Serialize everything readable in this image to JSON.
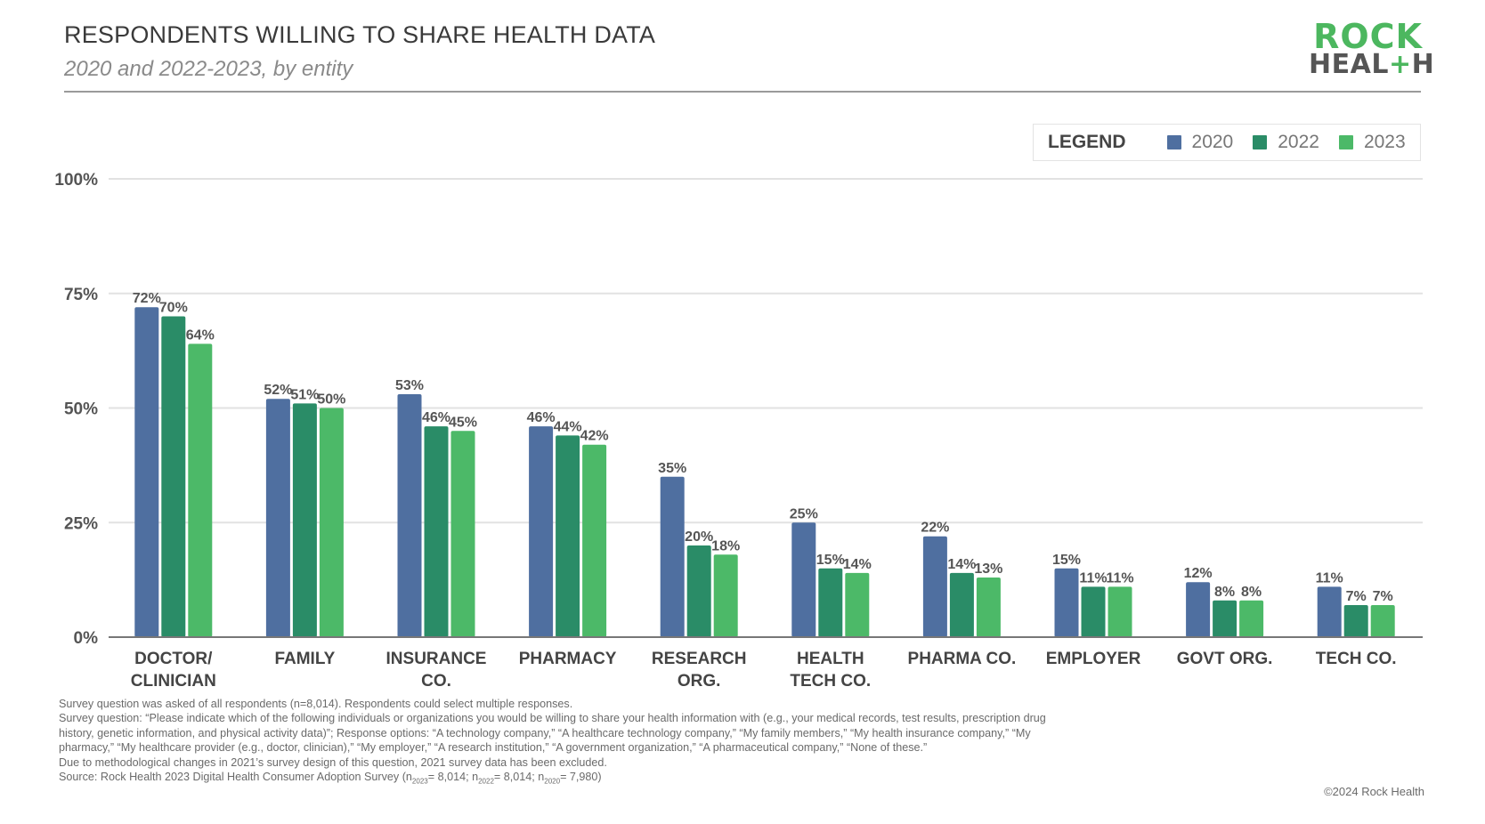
{
  "header": {
    "title": "RESPONDENTS WILLING TO SHARE HEALTH DATA",
    "subtitle": "2020 and 2022-2023, by entity"
  },
  "logo": {
    "line1": "ROCK",
    "line2_a": "HEAL",
    "line2_plus": "+",
    "line2_b": "H"
  },
  "legend": {
    "title": "LEGEND",
    "items": [
      {
        "label": "2020",
        "color": "#4f6fa0"
      },
      {
        "label": "2022",
        "color": "#2a8c67"
      },
      {
        "label": "2023",
        "color": "#4cb968"
      }
    ]
  },
  "chart_data": {
    "type": "bar",
    "title": "RESPONDENTS WILLING TO SHARE HEALTH DATA",
    "subtitle": "2020 and 2022-2023, by entity",
    "xlabel": "",
    "ylabel": "",
    "ylim": [
      0,
      100
    ],
    "yticks": [
      0,
      25,
      50,
      75,
      100
    ],
    "ytick_labels": [
      "0%",
      "25%",
      "50%",
      "75%",
      "100%"
    ],
    "grid": true,
    "legend_position": "top-right",
    "categories": [
      [
        "DOCTOR/",
        "CLINICIAN"
      ],
      [
        "FAMILY"
      ],
      [
        "INSURANCE",
        "CO."
      ],
      [
        "PHARMACY"
      ],
      [
        "RESEARCH",
        "ORG."
      ],
      [
        "HEALTH",
        "TECH  CO."
      ],
      [
        "PHARMA CO."
      ],
      [
        "EMPLOYER"
      ],
      [
        "GOVT ORG."
      ],
      [
        "TECH CO."
      ]
    ],
    "series": [
      {
        "name": "2020",
        "color": "#4f6fa0",
        "values": [
          72,
          52,
          53,
          46,
          35,
          25,
          22,
          15,
          12,
          11
        ]
      },
      {
        "name": "2022",
        "color": "#2a8c67",
        "values": [
          70,
          51,
          46,
          44,
          20,
          15,
          14,
          11,
          8,
          7
        ]
      },
      {
        "name": "2023",
        "color": "#4cb968",
        "values": [
          64,
          50,
          45,
          42,
          18,
          14,
          13,
          11,
          8,
          7
        ]
      }
    ],
    "value_label_suffix": "%"
  },
  "notes": {
    "line1": "Survey question was asked of all respondents (n=8,014). Respondents could select multiple responses.",
    "line2": "Survey question: “Please indicate which of the following individuals or organizations you would be willing to share your health information with (e.g., your medical records, test results, prescription drug history, genetic information, and physical activity data)”; Response options: “A technology company,” “A healthcare technology company,” “My family members,” “My health insurance company,” “My pharmacy,” “My healthcare provider (e.g., doctor, clinician),” “My employer,” “A research institution,” “A government organization,” “A pharmaceutical company,” “None of these.”",
    "line3": "Due to methodological changes in 2021’s survey design of this question, 2021 survey data has been excluded.",
    "source_prefix": "Source: Rock Health 2023 Digital Health Consumer Adoption Survey (n",
    "sub_2023": "2023",
    "val_2023": "= 8,014; n",
    "sub_2022": "2022",
    "val_2022": "= 8,014; n",
    "sub_2020": "2020",
    "val_2020": "= 7,980)"
  },
  "copyright": "©2024 Rock Health"
}
